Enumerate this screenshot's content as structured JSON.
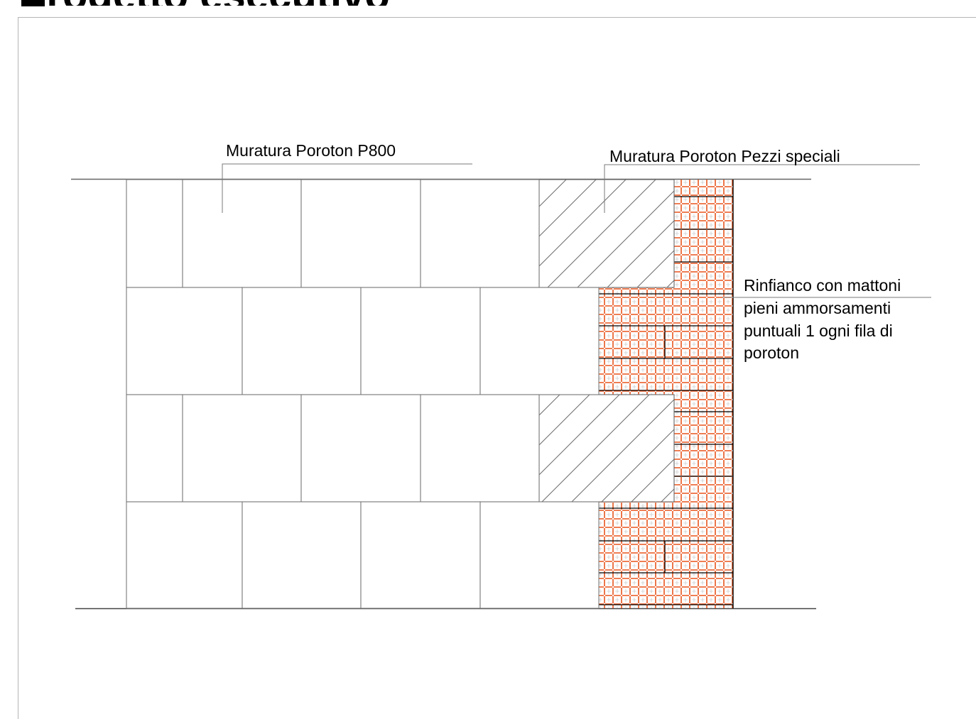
{
  "header": {
    "cut_title": "progetto esecutivo"
  },
  "labels": {
    "poroton_p800": "Muratura Poroton P800",
    "pezzi_speciali": "Muratura Poroton Pezzi speciali",
    "rinfianco": [
      "Rinfianco con mattoni",
      "pieni ammorsamenti",
      "puntuali 1 ogni fila di",
      "poroton"
    ]
  },
  "colors": {
    "line": "#8a8a8a",
    "wall_line": "#000000",
    "brick_hatch": "#e8541c",
    "hatch": "#6b6b6b"
  }
}
